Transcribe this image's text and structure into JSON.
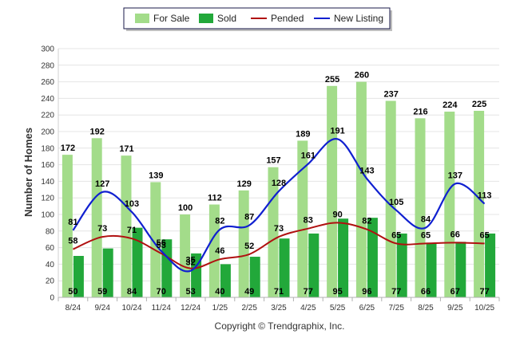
{
  "chart_data": {
    "type": "bar",
    "ylabel": "Number of Homes",
    "xlabel": "",
    "ylim": [
      0,
      300
    ],
    "yticks": [
      0,
      20,
      40,
      60,
      80,
      100,
      120,
      140,
      160,
      180,
      200,
      220,
      240,
      260,
      280,
      300
    ],
    "grid": true,
    "legend_position": "top-center",
    "categories": [
      "8/24",
      "9/24",
      "10/24",
      "11/24",
      "12/24",
      "1/25",
      "2/25",
      "3/25",
      "4/25",
      "5/25",
      "6/25",
      "7/25",
      "8/25",
      "9/25",
      "10/25"
    ],
    "series": [
      {
        "name": "For Sale",
        "kind": "bar",
        "color": "#a3dc8a",
        "values": [
          172,
          192,
          171,
          139,
          100,
          112,
          129,
          157,
          189,
          255,
          260,
          237,
          216,
          224,
          225
        ]
      },
      {
        "name": "Sold",
        "kind": "bar",
        "color": "#22a83a",
        "values": [
          50,
          59,
          84,
          70,
          53,
          40,
          49,
          71,
          77,
          95,
          96,
          77,
          66,
          67,
          77
        ]
      },
      {
        "name": "Pended",
        "kind": "line",
        "color": "#b01010",
        "values": [
          58,
          73,
          71,
          53,
          35,
          46,
          52,
          73,
          83,
          90,
          82,
          65,
          65,
          66,
          65
        ]
      },
      {
        "name": "New Listing",
        "kind": "line",
        "color": "#1020d0",
        "values": [
          81,
          127,
          103,
          56,
          32,
          82,
          87,
          128,
          161,
          191,
          143,
          105,
          84,
          137,
          113
        ]
      }
    ]
  },
  "copyright": "Copyright © Trendgraphix, Inc."
}
